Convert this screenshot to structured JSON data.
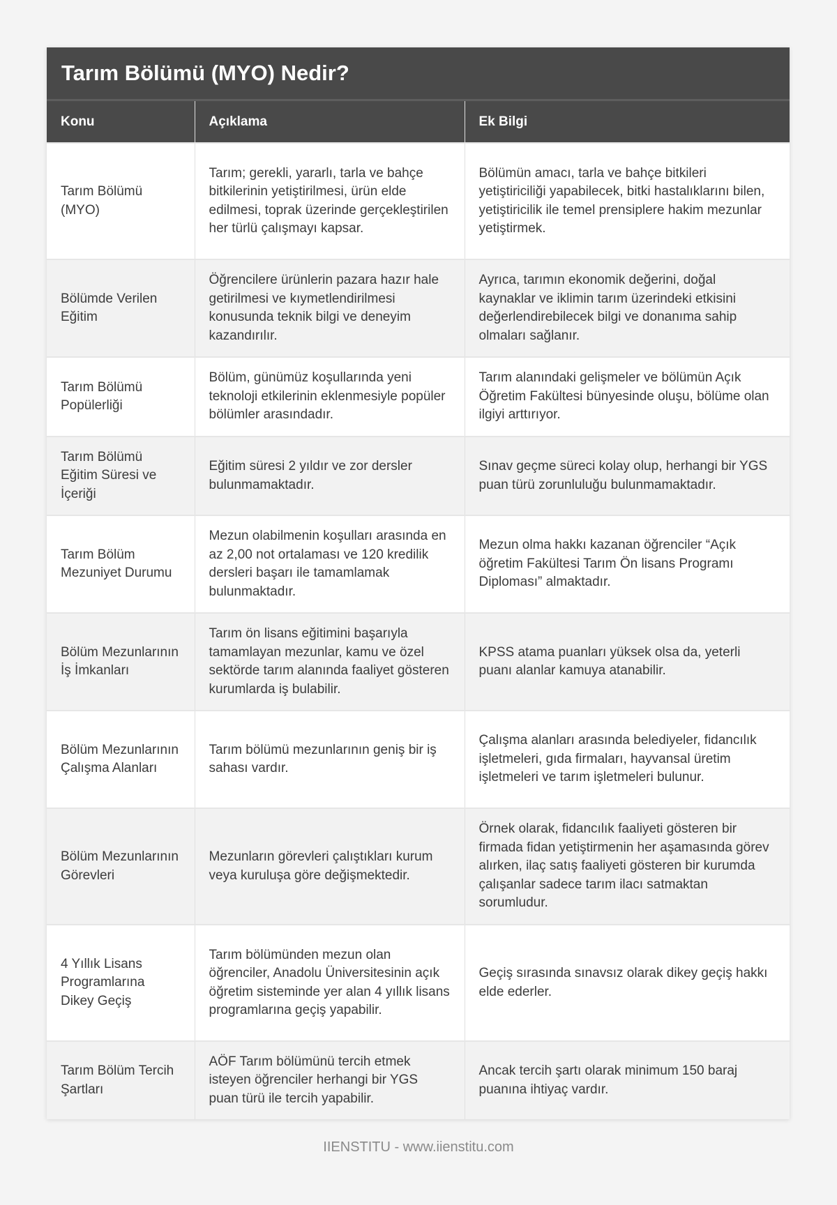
{
  "title": "Tarım Bölümü (MYO) Nedir?",
  "columns": [
    "Konu",
    "Açıklama",
    "Ek Bilgi"
  ],
  "rows": [
    [
      "Tarım Bölümü (MYO)",
      "Tarım; gerekli, yararlı, tarla ve bahçe bitkilerinin yetiştirilmesi, ürün elde edilmesi, toprak üzerinde gerçekleştirilen her türlü çalışmayı kapsar.",
      "Bölümün amacı, tarla ve bahçe bitkileri yetiştiriciliği yapabilecek, bitki hastalıklarını bilen, yetiştiricilik ile temel prensiplere hakim mezunlar yetiştirmek."
    ],
    [
      "Bölümde Verilen Eğitim",
      "Öğrencilere ürünlerin pazara hazır hale getirilmesi ve kıymetlendirilmesi konusunda teknik bilgi ve deneyim kazandırılır.",
      "Ayrıca, tarımın ekonomik değerini, doğal kaynaklar ve iklimin tarım üzerindeki etkisini değerlendirebilecek bilgi ve donanıma sahip olmaları sağlanır."
    ],
    [
      "Tarım Bölümü Popülerliği",
      "Bölüm, günümüz koşullarında yeni teknoloji etkilerinin eklenmesiyle popüler bölümler arasındadır.",
      "Tarım alanındaki gelişmeler ve bölümün Açık Öğretim Fakültesi bünyesinde oluşu, bölüme olan ilgiyi arttırıyor."
    ],
    [
      "Tarım Bölümü Eğitim Süresi ve İçeriği",
      "Eğitim süresi 2 yıldır ve zor dersler bulunmamaktadır.",
      "Sınav geçme süreci kolay olup, herhangi bir YGS puan türü zorunluluğu bulunmamaktadır."
    ],
    [
      "Tarım Bölüm Mezuniyet Durumu",
      "Mezun olabilmenin koşulları arasında en az 2,00 not ortalaması ve 120 kredilik dersleri başarı ile tamamlamak bulunmaktadır.",
      "Mezun olma hakkı kazanan öğrenciler “Açık öğretim Fakültesi Tarım Ön lisans Programı Diploması” almaktadır."
    ],
    [
      "Bölüm Mezunlarının İş İmkanları",
      "Tarım ön lisans eğitimini başarıyla tamamlayan mezunlar, kamu ve özel sektörde tarım alanında faaliyet gösteren kurumlarda iş bulabilir.",
      "KPSS atama puanları yüksek olsa da, yeterli puanı alanlar kamuya atanabilir."
    ],
    [
      "Bölüm Mezunlarının Çalışma Alanları",
      "Tarım bölümü mezunlarının geniş bir iş sahası vardır.",
      "Çalışma alanları arasında belediyeler, fidancılık işletmeleri, gıda firmaları, hayvansal üretim işletmeleri ve tarım işletmeleri bulunur."
    ],
    [
      "Bölüm Mezunlarının Görevleri",
      "Mezunların görevleri çalıştıkları kurum veya kuruluşa göre değişmektedir.",
      "Örnek olarak, fidancılık faaliyeti gösteren bir firmada fidan yetiştirmenin her aşamasında görev alırken, ilaç satış faaliyeti gösteren bir kurumda çalışanlar sadece tarım ilacı satmaktan sorumludur."
    ],
    [
      "4 Yıllık Lisans Programlarına Dikey Geçiş",
      "Tarım bölümünden mezun olan öğrenciler, Anadolu Üniversitesinin açık öğretim sisteminde yer alan 4 yıllık lisans programlarına geçiş yapabilir.",
      "Geçiş sırasında sınavsız olarak dikey geçiş hakkı elde ederler."
    ],
    [
      "Tarım Bölüm Tercih Şartları",
      "AÖF Tarım bölümünü tercih etmek isteyen öğrenciler herhangi bir YGS puan türü ile tercih yapabilir.",
      "Ancak tercih şartı olarak minimum 150 baraj puanına ihtiyaç vardır."
    ]
  ],
  "footer": "IIENSTITU - www.iienstitu.com"
}
